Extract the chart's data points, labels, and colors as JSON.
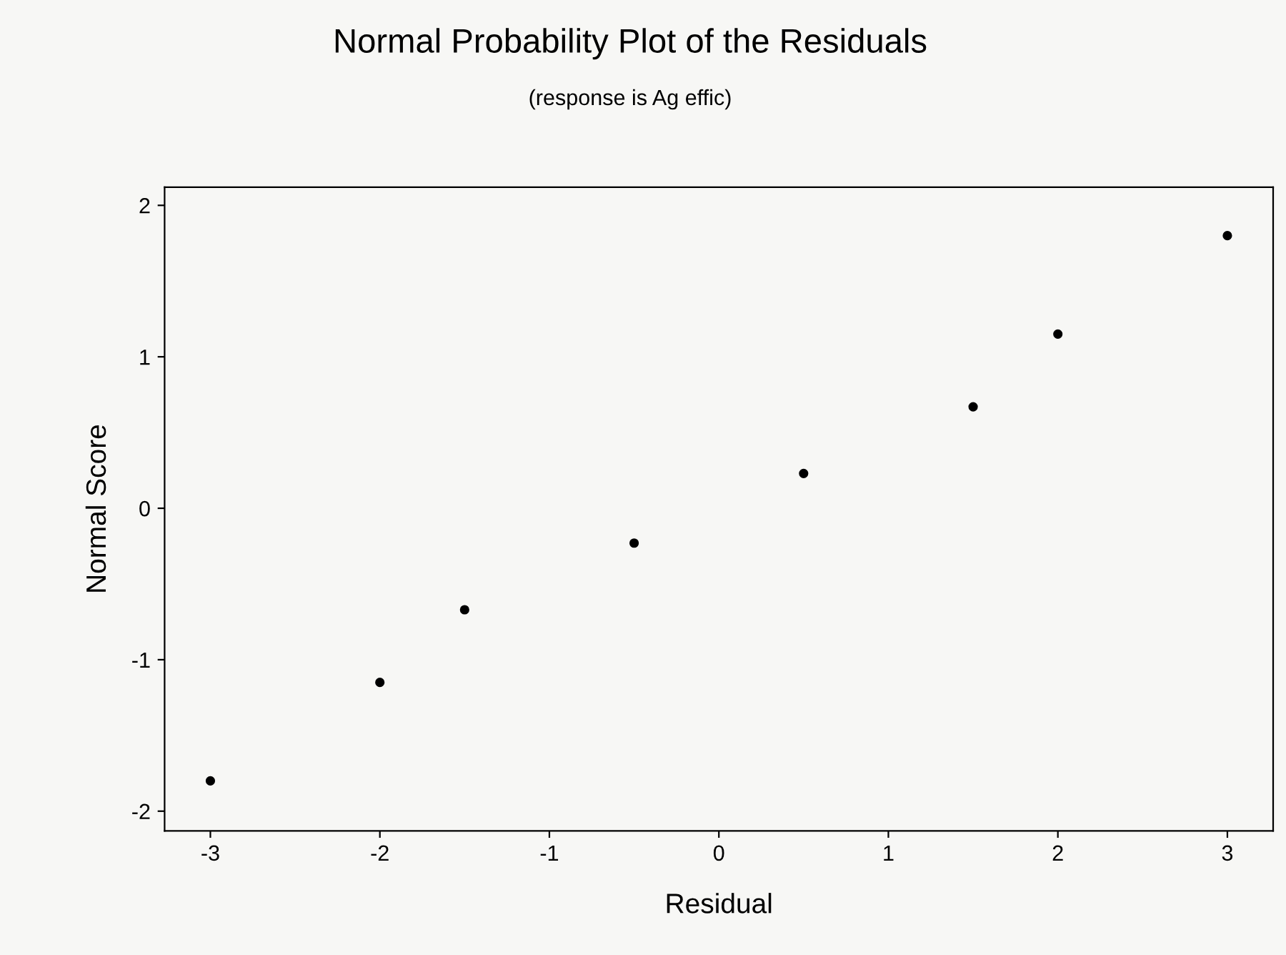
{
  "chart_data": {
    "type": "scatter",
    "title": "Normal Probability Plot of the Residuals",
    "subtitle": "(response is Ag effic)",
    "xlabel": "Residual",
    "ylabel": "Normal Score",
    "x": [
      -3,
      -2,
      -1.5,
      -0.5,
      0.5,
      1.5,
      2,
      3
    ],
    "series": [
      {
        "color": "#000000",
        "values": [
          -1.8,
          -1.15,
          -0.67,
          -0.23,
          0.23,
          0.67,
          1.15,
          1.8
        ]
      }
    ],
    "xlim": [
      -3.27,
      3.27
    ],
    "xticks": [
      -3,
      -2,
      -1,
      0,
      1,
      2,
      3
    ],
    "ylim": [
      -2.13,
      2.12
    ],
    "yticks": [
      -2,
      -1,
      0,
      1,
      2
    ],
    "grid": false,
    "legend": false,
    "marker": "circle"
  }
}
